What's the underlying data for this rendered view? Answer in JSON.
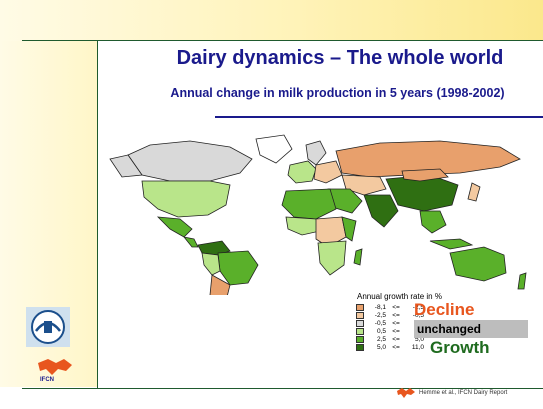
{
  "slide": {
    "title": "Dairy dynamics – The whole world",
    "subtitle": "Annual change in milk production in 5 years",
    "period": "(1998-2002)"
  },
  "legend": {
    "title": "Annual growth rate in %",
    "rows": [
      {
        "low": "-8,1",
        "op": "<=",
        "high": "-2,5",
        "color": "#e8a06c"
      },
      {
        "low": "-2,5",
        "op": "<=",
        "high": "-0,5",
        "color": "#f3c9a0"
      },
      {
        "low": "-0,5",
        "op": "<=",
        "high": "0,5",
        "color": "#d9d9d9"
      },
      {
        "low": "0,5",
        "op": "<=",
        "high": "2,5",
        "color": "#b9e58a"
      },
      {
        "low": "2,5",
        "op": "<=",
        "high": "5,0",
        "color": "#5ab02a"
      },
      {
        "low": "5,0",
        "op": "<=",
        "high": "11,0",
        "color": "#2f6f12"
      }
    ],
    "decline_label": "Decline",
    "unchanged_label": "unchanged",
    "growth_label": "Growth"
  },
  "logos": {
    "ifcn_text": "IFCN"
  },
  "footer": {
    "source": "Hemme et al., IFCN Dairy Report"
  },
  "colors": {
    "title": "#1a1a8c",
    "decline": "#e8561e",
    "growth": "#1f6b1f",
    "unchanged_bg": "#bdbdbd",
    "frame": "#1f5a2e"
  }
}
